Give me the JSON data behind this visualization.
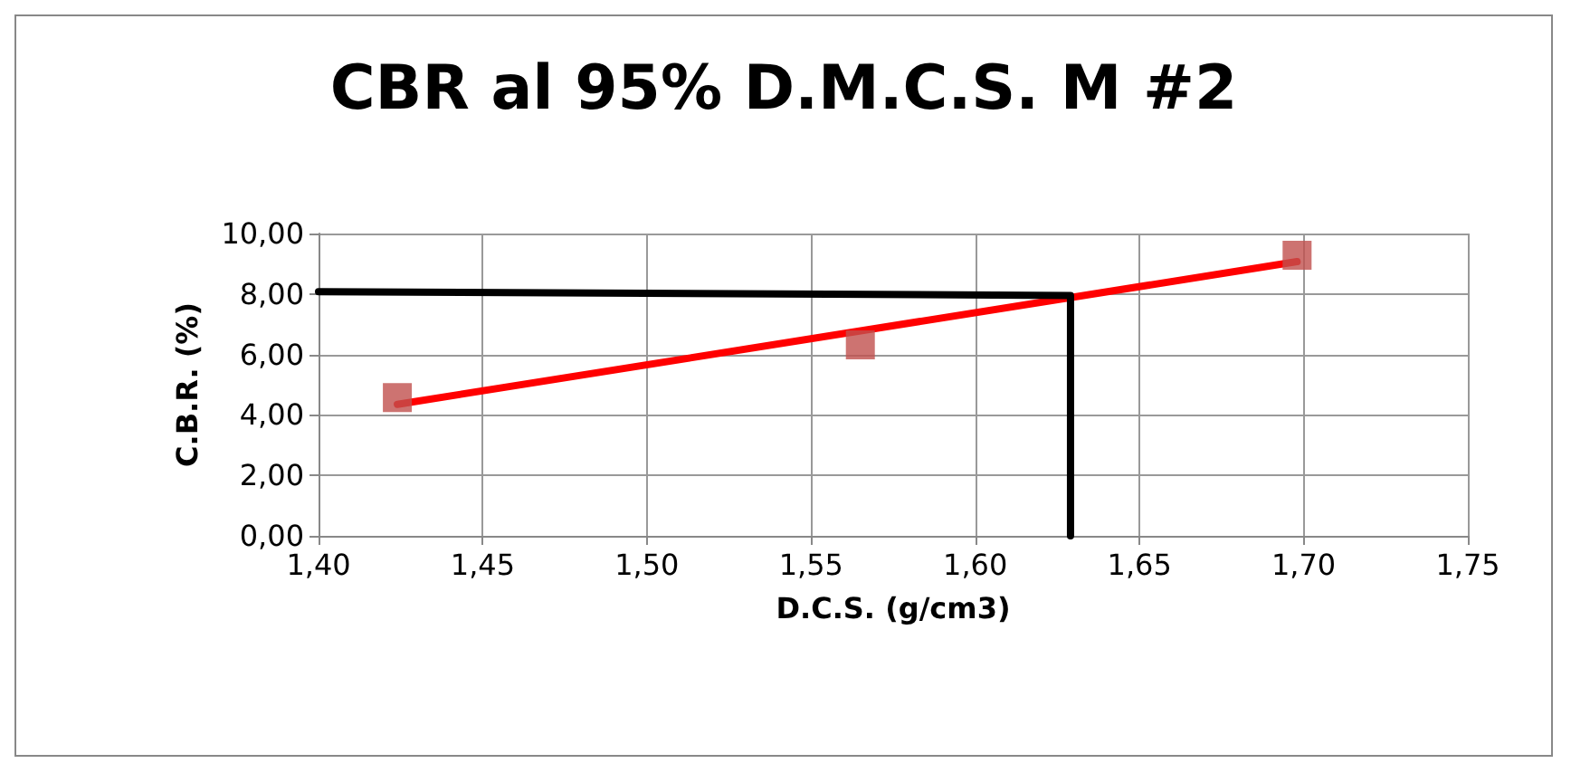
{
  "chart_data": {
    "type": "scatter",
    "title": "CBR al 95% D.M.C.S. M #2",
    "xlabel": "D.C.S. (g/cm3)",
    "ylabel": "C.B.R. (%)",
    "xlim": [
      1.4,
      1.75
    ],
    "xticks": [
      {
        "value": 1.4,
        "label": "1,40"
      },
      {
        "value": 1.45,
        "label": "1,45"
      },
      {
        "value": 1.5,
        "label": "1,50"
      },
      {
        "value": 1.55,
        "label": "1,55"
      },
      {
        "value": 1.6,
        "label": "1,60"
      },
      {
        "value": 1.65,
        "label": "1,65"
      },
      {
        "value": 1.7,
        "label": "1,70"
      },
      {
        "value": 1.75,
        "label": "1,75"
      }
    ],
    "ylim": [
      0,
      10
    ],
    "yticks": [
      {
        "value": 0,
        "label": "0,00"
      },
      {
        "value": 2,
        "label": "2,00"
      },
      {
        "value": 4,
        "label": "4,00"
      },
      {
        "value": 6,
        "label": "6,00"
      },
      {
        "value": 8,
        "label": "8,00"
      },
      {
        "value": 10,
        "label": "10,00"
      }
    ],
    "grid": true,
    "series": [
      {
        "type": "line",
        "color": "#ff0000",
        "x": [
          1.424,
          1.698
        ],
        "values": [
          4.35,
          9.07
        ],
        "marker": "none",
        "line_style": "solid"
      },
      {
        "type": "line",
        "color": "#000000",
        "x": [
          1.4,
          1.629,
          1.629
        ],
        "values": [
          8.08,
          7.95,
          0
        ],
        "marker": "none",
        "line_style": "solid"
      },
      {
        "color": "#c0504d",
        "x": [
          1.424,
          1.565,
          1.698
        ],
        "values": [
          4.57,
          6.32,
          9.28
        ],
        "marker": "square"
      }
    ]
  }
}
